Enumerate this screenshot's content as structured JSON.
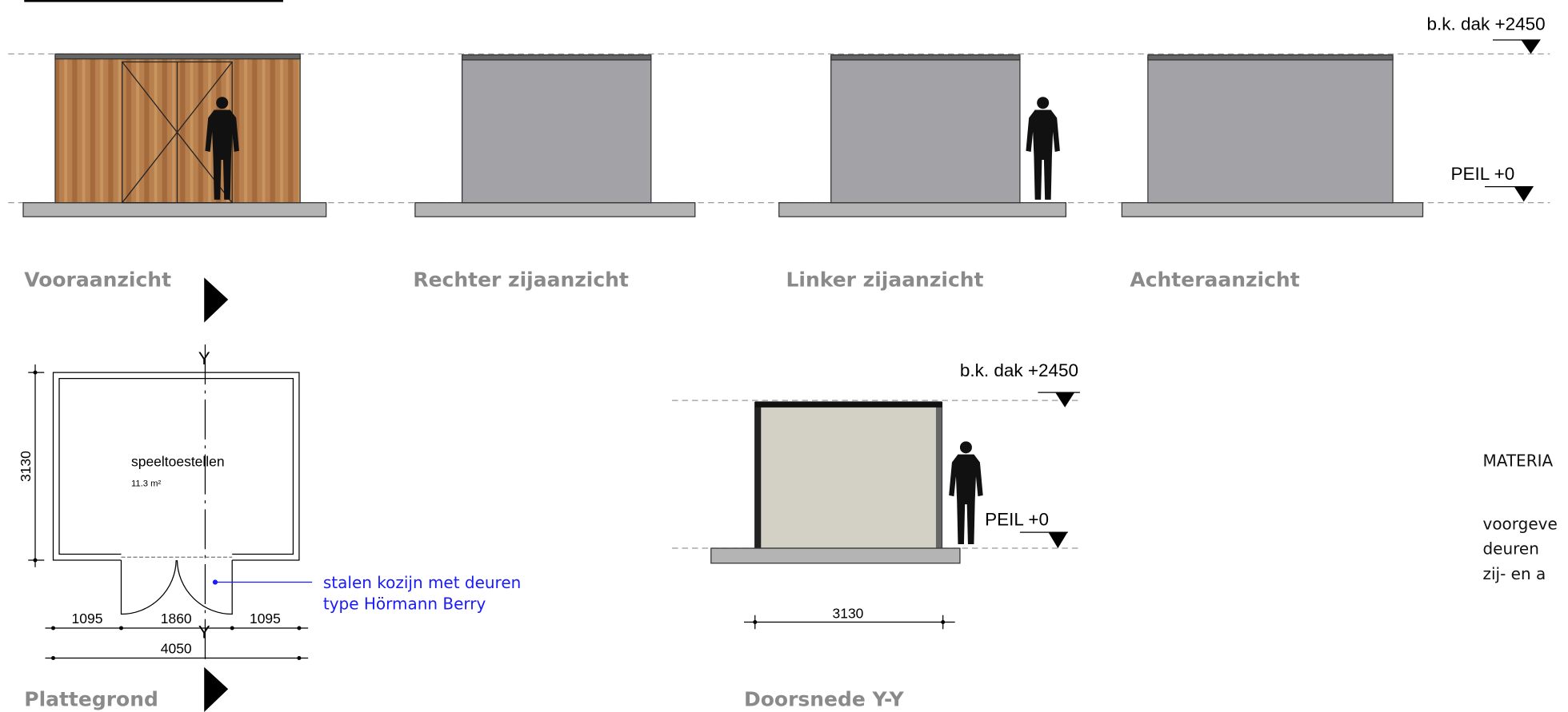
{
  "levels": {
    "roof": "b.k. dak +2450",
    "floor": "PEIL +0"
  },
  "views": {
    "front": "Vooraanzicht",
    "right": "Rechter zijaanzicht",
    "left": "Linker zijaanzicht",
    "back": "Achteraanzicht"
  },
  "plan": {
    "title": "Plattegrond",
    "section_mark": "Y",
    "room": "speeltoestellen",
    "area": "11.3 m²",
    "dims": {
      "depth": "3130",
      "left": "1095",
      "door": "1860",
      "right": "1095",
      "width": "4050"
    },
    "annotation": [
      "stalen kozijn met deuren",
      "type Hörmann Berry"
    ]
  },
  "section": {
    "title": "Doorsnede Y-Y",
    "roof": "b.k. dak +2450",
    "floor": "PEIL +0",
    "dim": "3130"
  },
  "materials": [
    "MATERIA",
    "voorgeve",
    "deuren",
    "zij- en a"
  ]
}
